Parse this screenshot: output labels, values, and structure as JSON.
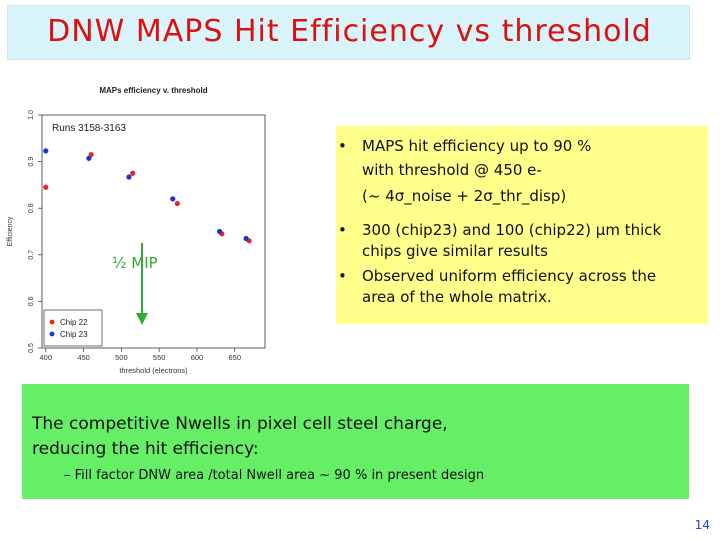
{
  "title": "DNW MAPS Hit Efficiency vs threshold",
  "chart_data": {
    "type": "scatter",
    "title": "MAPs efficiency v. threshold",
    "subtitle": "Runs 3158-3163",
    "xlabel": "threshold (electrons)",
    "ylabel": "Efficiency",
    "xlim": [
      395,
      690
    ],
    "ylim": [
      0.5,
      1.0
    ],
    "x_ticks": [
      400,
      450,
      500,
      550,
      600,
      650
    ],
    "y_ticks": [
      0.5,
      0.6,
      0.7,
      0.8,
      0.9,
      1.0
    ],
    "legend_position": "bottom-left",
    "series": [
      {
        "name": "Chip 22",
        "color": "#e8252e",
        "x": [
          400,
          460,
          515,
          574,
          633,
          669
        ],
        "y": [
          0.845,
          0.915,
          0.875,
          0.81,
          0.745,
          0.73
        ]
      },
      {
        "name": "Chip 23",
        "color": "#2233cc",
        "x": [
          400,
          457,
          510,
          568,
          630,
          665
        ],
        "y": [
          0.923,
          0.907,
          0.867,
          0.82,
          0.75,
          0.735
        ]
      }
    ],
    "annotation": {
      "text": "½ MIP",
      "color": "#33aa33"
    }
  },
  "bullets": [
    {
      "symbol": "•",
      "lines": [
        "MAPS hit efficiency up to 90 %",
        "with threshold @ 450 e-",
        "(~ 4σ_noise + 2σ_thr_disp)"
      ]
    },
    {
      "symbol": "•",
      "lines": [
        "300 (chip23) and 100 (chip22) μm thick",
        "chips give similar results"
      ]
    },
    {
      "symbol": "•",
      "lines": [
        "Observed uniform efficiency across the",
        "area of the whole matrix."
      ]
    }
  ],
  "note": {
    "lines": [
      "The competitive Nwells in pixel cell steel charge,",
      "reducing the hit efficiency:"
    ],
    "sub": "–  Fill factor DNW area /total Nwell area ~ 90 % in present design"
  },
  "page_number": "14"
}
